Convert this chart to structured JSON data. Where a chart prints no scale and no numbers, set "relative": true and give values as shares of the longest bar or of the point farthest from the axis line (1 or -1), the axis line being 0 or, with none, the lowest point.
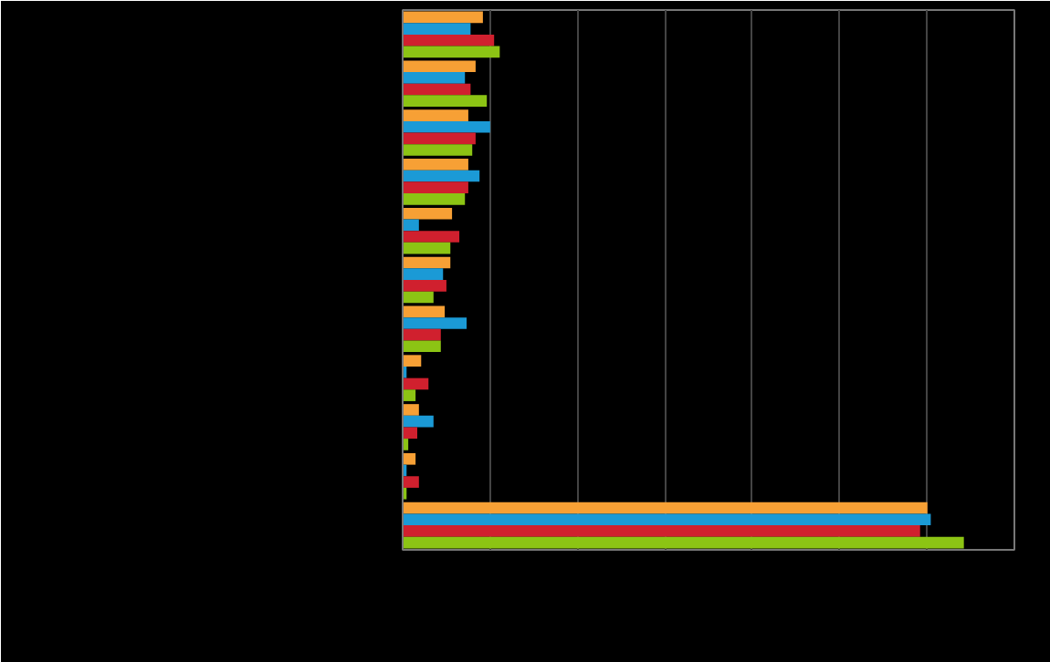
{
  "chart_data": {
    "type": "bar",
    "orientation": "horizontal",
    "relative": true,
    "grid": "x",
    "categories": [
      null,
      null,
      null,
      null,
      null,
      null,
      null,
      null,
      null,
      null,
      null
    ],
    "series": [
      {
        "color": "#f7a035",
        "values": [
          0.143,
          0.13,
          0.117,
          0.117,
          0.088,
          0.085,
          0.075,
          0.033,
          0.029,
          0.023,
          0.935
        ]
      },
      {
        "color": "#1b9ad6",
        "values": [
          0.121,
          0.111,
          0.156,
          0.137,
          0.029,
          0.072,
          0.114,
          0.007,
          0.055,
          0.007,
          0.941
        ]
      },
      {
        "color": "#d0202e",
        "values": [
          0.163,
          0.121,
          0.13,
          0.117,
          0.101,
          0.078,
          0.068,
          0.046,
          0.026,
          0.029,
          0.922
        ]
      },
      {
        "color": "#8cc414",
        "values": [
          0.173,
          0.15,
          0.124,
          0.111,
          0.085,
          0.055,
          0.068,
          0.023,
          0.01,
          0.007,
          1
        ]
      }
    ]
  }
}
